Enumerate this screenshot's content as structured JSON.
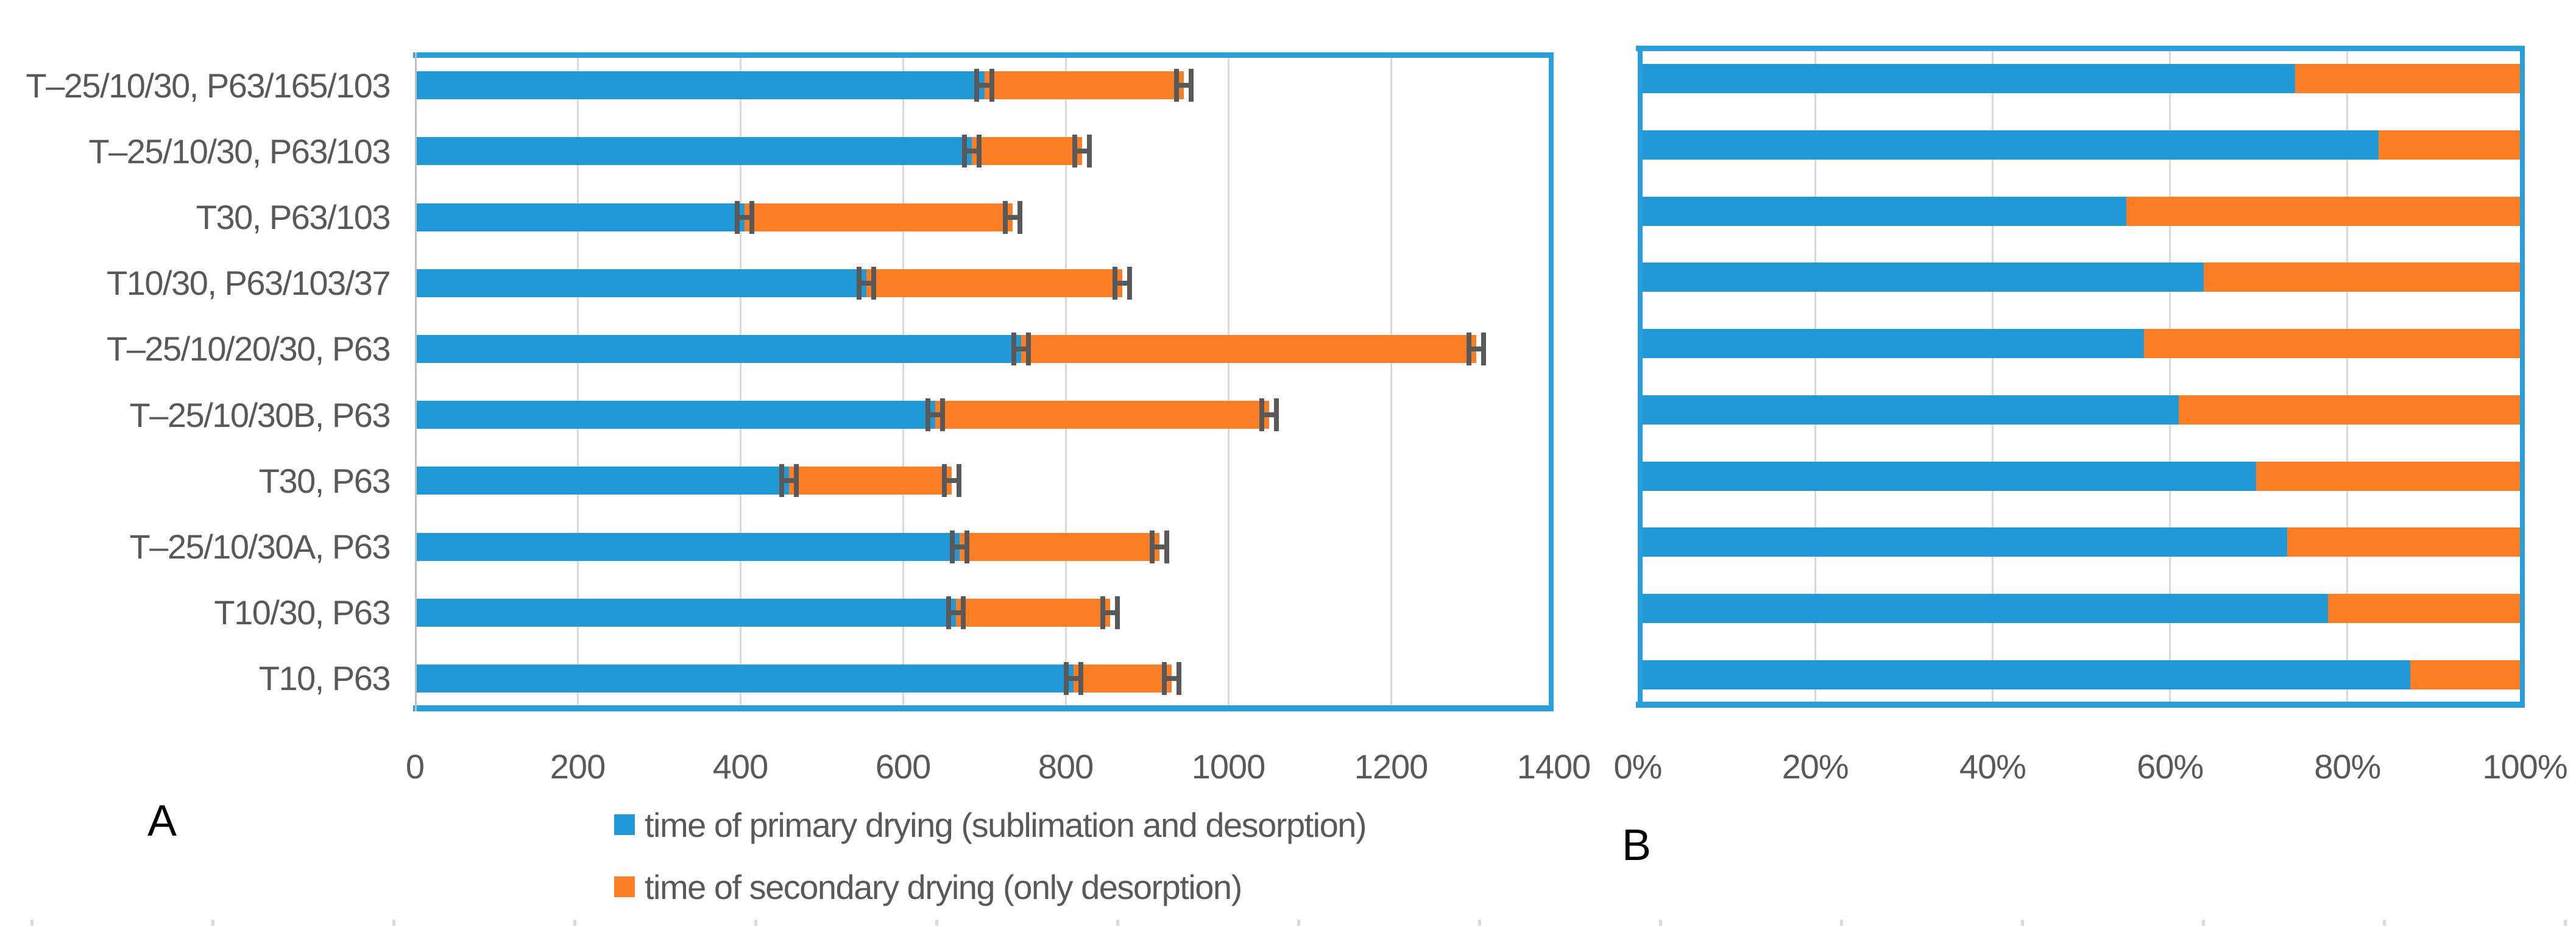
{
  "colors": {
    "primary": "#2199D6",
    "secondary": "#FC7E24",
    "plot_border": "#2B9FD9",
    "gridline": "#D9D9D9",
    "axis_line": "#BFBFBF",
    "text": "#595959",
    "panel_letter": "#000000",
    "error_bar": "#595959",
    "background": "#FFFFFF"
  },
  "legend": [
    {
      "label": "time of primary drying (sublimation and desorption)",
      "color": "#2199D6"
    },
    {
      "label": "time of secondary drying (only desorption)",
      "color": "#FC7E24"
    }
  ],
  "chart_data": [
    {
      "type": "bar",
      "orientation": "horizontal",
      "stacked": true,
      "panel_label": "A",
      "title": "",
      "xlabel": "",
      "ylabel": "",
      "categories": [
        "T–25/10/30, P63/165/103",
        "T–25/10/30, P63/103",
        "T30, P63/103",
        "T10/30, P63/103/37",
        "T–25/10/20/30, P63",
        "T–25/10/30B, P63",
        "T30, P63",
        "T–25/10/30A, P63",
        "T10/30, P63",
        "T10, P63"
      ],
      "series": [
        {
          "name": "time of primary drying (sublimation and desorption)",
          "values": [
            700,
            685,
            405,
            555,
            745,
            640,
            460,
            670,
            665,
            810
          ]
        },
        {
          "name": "time of secondary drying (only desorption)",
          "values": [
            245,
            135,
            330,
            315,
            560,
            410,
            200,
            245,
            190,
            120
          ]
        }
      ],
      "totals": [
        945,
        820,
        735,
        870,
        1305,
        1050,
        660,
        915,
        855,
        930
      ],
      "xlim": [
        0,
        1400
      ],
      "x_tick_values": [
        0,
        200,
        400,
        600,
        800,
        1000,
        1200,
        1400
      ],
      "x_ticks": [
        "0",
        "200",
        "400",
        "600",
        "800",
        "1000",
        "1200",
        "1400"
      ],
      "error_x": 12,
      "grid": true,
      "legend_position": "bottom"
    },
    {
      "type": "bar",
      "orientation": "horizontal",
      "stacked": true,
      "stacked_to_100_percent": true,
      "panel_label": "B",
      "title": "",
      "xlabel": "",
      "ylabel": "",
      "categories": [
        "T–25/10/30, P63/165/103",
        "T–25/10/30, P63/103",
        "T30, P63/103",
        "T10/30, P63/103/37",
        "T–25/10/20/30, P63",
        "T–25/10/30B, P63",
        "T30, P63",
        "T–25/10/30A, P63",
        "T10/30, P63",
        "T10, P63"
      ],
      "series": [
        {
          "name": "time of primary drying (sublimation and desorption)",
          "values": [
            74.1,
            83.5,
            55.1,
            63.8,
            57.1,
            61.0,
            69.7,
            73.2,
            77.8,
            87.1
          ]
        },
        {
          "name": "time of secondary drying (only desorption)",
          "values": [
            25.9,
            16.5,
            44.9,
            36.2,
            42.9,
            39.0,
            30.3,
            26.8,
            22.2,
            12.9
          ]
        }
      ],
      "xlim": [
        0,
        100
      ],
      "x_tick_values": [
        0,
        20,
        40,
        60,
        80,
        100
      ],
      "x_ticks": [
        "0%",
        "20%",
        "40%",
        "60%",
        "80%",
        "100%"
      ],
      "error_x": null,
      "grid": true,
      "legend_position": "none"
    }
  ]
}
